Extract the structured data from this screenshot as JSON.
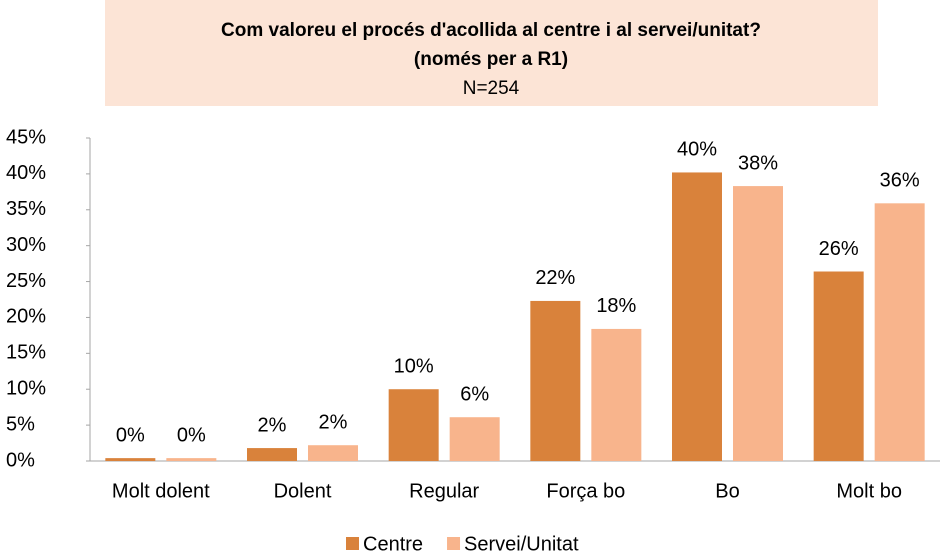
{
  "chart_data": {
    "type": "bar",
    "title": [
      "Com valoreu el procés d'acollida al centre i al servei/unitat?",
      "(només per a R1)"
    ],
    "subtitle": "N=254",
    "categories": [
      "Molt dolent",
      "Dolent",
      "Regular",
      "Força bo",
      "Bo",
      "Molt bo"
    ],
    "series": [
      {
        "name": "Centre",
        "color": "#d9823b",
        "values": [
          0.4,
          1.8,
          10.0,
          22.3,
          40.2,
          26.4
        ],
        "value_labels": [
          "0%",
          "2%",
          "10%",
          "22%",
          "40%",
          "26%"
        ]
      },
      {
        "name": "Servei/Unitat",
        "color": "#f8b48c",
        "values": [
          0.4,
          2.2,
          6.1,
          18.4,
          38.3,
          35.9
        ],
        "value_labels": [
          "0%",
          "2%",
          "6%",
          "18%",
          "38%",
          "36%"
        ]
      }
    ],
    "ylim": [
      0,
      45
    ],
    "yticks": [
      {
        "value": 0,
        "label": "0%"
      },
      {
        "value": 5,
        "label": "5%"
      },
      {
        "value": 10,
        "label": "10%"
      },
      {
        "value": 15,
        "label": "15%"
      },
      {
        "value": 20,
        "label": "20%"
      },
      {
        "value": 25,
        "label": "25%"
      },
      {
        "value": 30,
        "label": "30%"
      },
      {
        "value": 35,
        "label": "35%"
      },
      {
        "value": 40,
        "label": "40%"
      },
      {
        "value": 45,
        "label": "45%"
      }
    ],
    "grid": false,
    "legend": "bottom"
  }
}
